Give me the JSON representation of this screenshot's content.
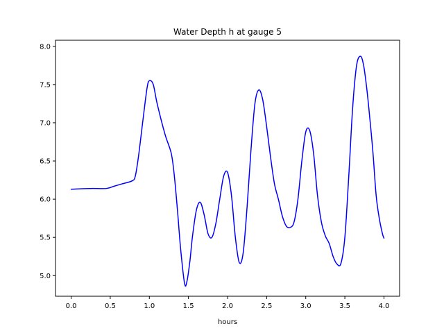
{
  "chart_data": {
    "type": "line",
    "title": "Water Depth h at gauge 5",
    "xlabel": "hours",
    "ylabel": "",
    "xlim": [
      -0.2,
      4.2
    ],
    "ylim": [
      4.73,
      8.08
    ],
    "xticks": [
      0.0,
      0.5,
      1.0,
      1.5,
      2.0,
      2.5,
      3.0,
      3.5,
      4.0
    ],
    "xtick_labels": [
      "0.0",
      "0.5",
      "1.0",
      "1.5",
      "2.0",
      "2.5",
      "3.0",
      "3.5",
      "4.0"
    ],
    "yticks": [
      5.0,
      5.5,
      6.0,
      6.5,
      7.0,
      7.5,
      8.0
    ],
    "ytick_labels": [
      "5.0",
      "5.5",
      "6.0",
      "6.5",
      "7.0",
      "7.5",
      "8.0"
    ],
    "grid": false,
    "legend": "none",
    "series": [
      {
        "color": "#0000ff",
        "x": [
          0.0,
          0.25,
          0.45,
          0.55,
          0.65,
          0.78,
          0.82,
          0.86,
          0.92,
          0.97,
          1.0,
          1.05,
          1.1,
          1.2,
          1.28,
          1.32,
          1.36,
          1.4,
          1.45,
          1.48,
          1.52,
          1.55,
          1.6,
          1.65,
          1.7,
          1.75,
          1.8,
          1.85,
          1.9,
          1.95,
          2.0,
          2.05,
          2.1,
          2.15,
          2.2,
          2.25,
          2.3,
          2.35,
          2.4,
          2.45,
          2.5,
          2.55,
          2.6,
          2.65,
          2.7,
          2.75,
          2.8,
          2.85,
          2.9,
          2.95,
          3.0,
          3.05,
          3.1,
          3.15,
          3.2,
          3.25,
          3.3,
          3.35,
          3.4,
          3.45,
          3.5,
          3.55,
          3.6,
          3.65,
          3.7,
          3.74,
          3.78,
          3.82,
          3.86,
          3.9,
          3.94,
          3.98,
          4.0
        ],
        "y": [
          6.13,
          6.14,
          6.14,
          6.17,
          6.2,
          6.24,
          6.3,
          6.55,
          7.05,
          7.45,
          7.55,
          7.5,
          7.25,
          6.85,
          6.6,
          6.3,
          5.85,
          5.35,
          4.9,
          4.92,
          5.2,
          5.5,
          5.85,
          5.96,
          5.8,
          5.55,
          5.5,
          5.68,
          6.0,
          6.3,
          6.35,
          6.05,
          5.5,
          5.17,
          5.3,
          5.9,
          6.65,
          7.25,
          7.43,
          7.3,
          6.95,
          6.55,
          6.2,
          6.0,
          5.78,
          5.65,
          5.63,
          5.7,
          6.0,
          6.5,
          6.88,
          6.9,
          6.6,
          6.05,
          5.7,
          5.52,
          5.42,
          5.25,
          5.15,
          5.16,
          5.5,
          6.3,
          7.2,
          7.75,
          7.87,
          7.75,
          7.45,
          7.05,
          6.6,
          6.05,
          5.75,
          5.55,
          5.49
        ]
      }
    ]
  }
}
